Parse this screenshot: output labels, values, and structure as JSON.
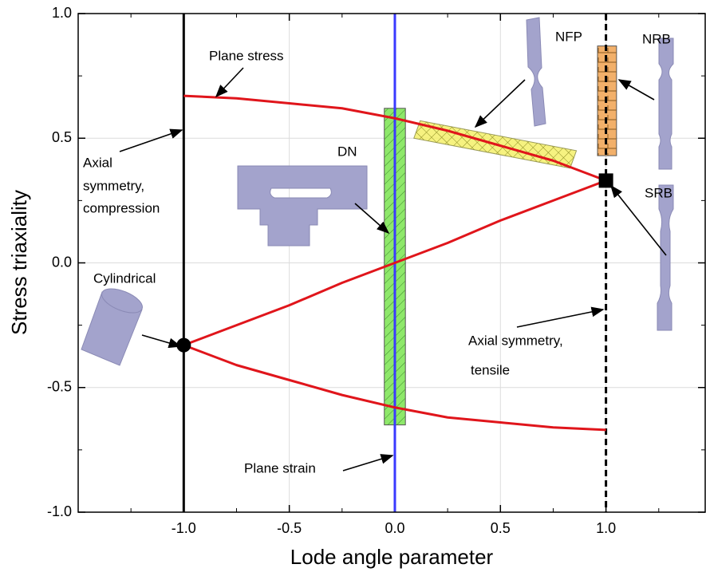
{
  "chart_data": {
    "type": "line",
    "xlabel": "Lode angle parameter",
    "ylabel": "Stress triaxiality",
    "xlim": [
      -1.5,
      1.47
    ],
    "ylim": [
      -1,
      1
    ],
    "xticks": [
      {
        "value": -1,
        "label": "-1.0"
      },
      {
        "value": -0.5,
        "label": "-0.5"
      },
      {
        "value": 0,
        "label": "0.0"
      },
      {
        "value": 0.5,
        "label": "0.5"
      },
      {
        "value": 1,
        "label": "1.0"
      }
    ],
    "yticks": [
      {
        "value": -1,
        "label": "-1.0"
      },
      {
        "value": -0.5,
        "label": "-0.5"
      },
      {
        "value": 0,
        "label": "0.0"
      },
      {
        "value": 0.5,
        "label": "0.5"
      },
      {
        "value": 1,
        "label": "1.0"
      }
    ],
    "xminorticks": [
      -1.25,
      -0.75,
      -0.25,
      0.25,
      0.75,
      1.25
    ],
    "yminorticks": [
      -0.75,
      -0.25,
      0.25,
      0.75
    ],
    "grid": true,
    "x": [
      -1,
      -0.75,
      -0.5,
      -0.25,
      0,
      0.25,
      0.5,
      0.75,
      1
    ],
    "series": [
      {
        "color": "#e0151b",
        "values": [
          0.67,
          0.66,
          0.64,
          0.62,
          0.58,
          0.53,
          0.47,
          0.41,
          0.33
        ]
      },
      {
        "color": "#e0151b",
        "values": [
          -0.33,
          -0.41,
          -0.47,
          -0.53,
          -0.58,
          -0.62,
          -0.64,
          -0.66,
          -0.67
        ]
      },
      {
        "color": "#e0151b",
        "values": [
          -0.33,
          -0.25,
          -0.17,
          -0.08,
          0,
          0.08,
          0.17,
          0.25,
          0.33
        ]
      }
    ],
    "vlines": [
      {
        "x": -1,
        "color": "#000000",
        "style": "solid"
      },
      {
        "x": 0,
        "color": "#3a3aff",
        "style": "solid"
      },
      {
        "x": 1,
        "color": "#000000",
        "style": "dashed"
      }
    ],
    "boxes": [
      {
        "x0": -0.05,
        "x1": 0.05,
        "y0": -0.65,
        "y1": 0.62,
        "color": "#8ee86a",
        "hatch": "diagonal"
      },
      {
        "x0": 0.96,
        "x1": 1.05,
        "y0": 0.43,
        "y1": 0.87,
        "color": "#f2b06a",
        "hatch": "grid"
      }
    ],
    "bands": [
      {
        "points": [
          [
            0.12,
            0.57
          ],
          [
            0.86,
            0.45
          ],
          [
            0.83,
            0.38
          ],
          [
            0.09,
            0.5
          ]
        ],
        "color": "#f5f06a",
        "hatch": "cross"
      }
    ],
    "markers": [
      {
        "x": -1,
        "y": -0.33,
        "shape": "circle"
      },
      {
        "x": 1,
        "y": 0.33,
        "shape": "square"
      }
    ],
    "annotations": [
      "Plane stress",
      "Axial",
      "symmetry,",
      "compression",
      "DN",
      "NFP",
      "NRB",
      "SRB",
      "Cylindrical",
      "Axial symmetry,",
      "tensile",
      "Plane strain"
    ]
  }
}
